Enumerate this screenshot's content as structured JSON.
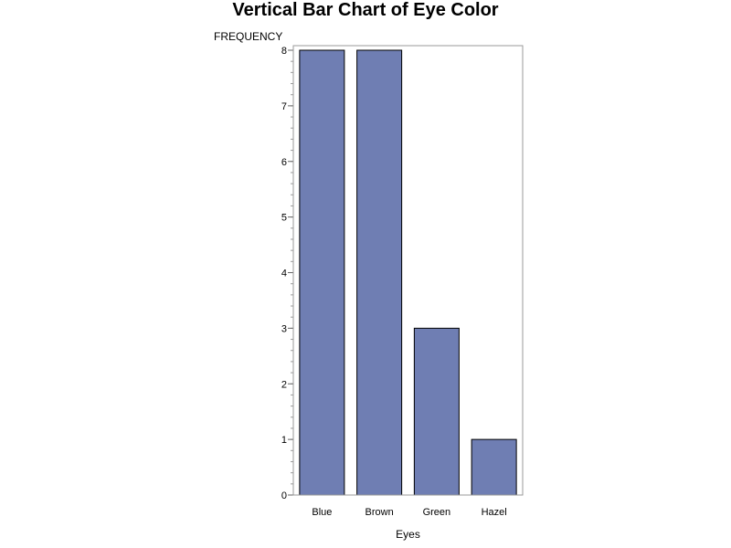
{
  "chart_data": {
    "type": "bar",
    "title": "Vertical Bar Chart of Eye Color",
    "xlabel": "Eyes",
    "ylabel": "FREQUENCY",
    "categories": [
      "Blue",
      "Brown",
      "Green",
      "Hazel"
    ],
    "values": [
      8,
      8,
      3,
      1
    ],
    "ylim": [
      0,
      8
    ],
    "yticks": [
      "0",
      "1",
      "2",
      "3",
      "4",
      "5",
      "6",
      "7",
      "8"
    ],
    "bar_color": "#6f7eb3",
    "grid": false,
    "legend": "none"
  }
}
